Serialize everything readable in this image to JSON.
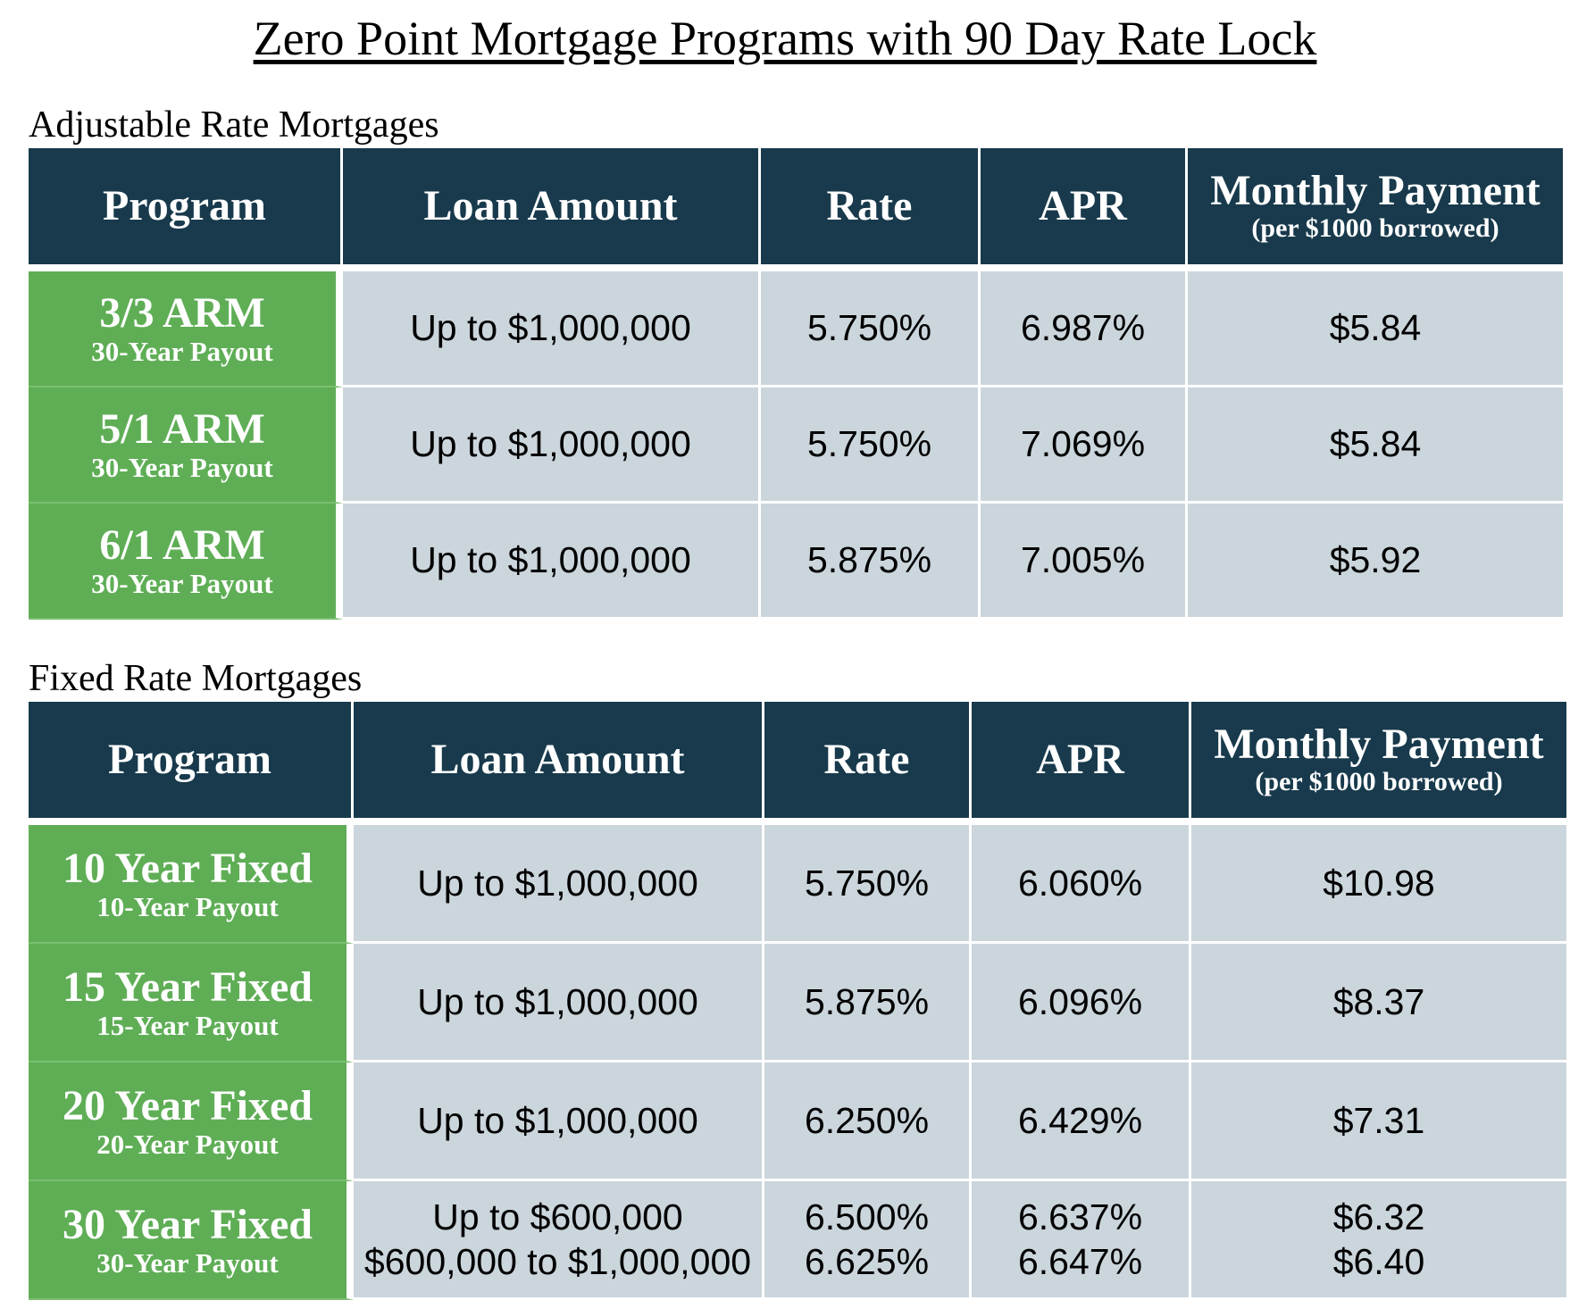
{
  "title": "Zero Point Mortgage Programs with 90 Day Rate Lock",
  "headers": {
    "program": "Program",
    "loan_amount": "Loan Amount",
    "rate": "Rate",
    "apr": "APR",
    "monthly_payment": "Monthly Payment",
    "monthly_payment_sub": "(per $1000 borrowed)"
  },
  "arm": {
    "title": "Adjustable Rate Mortgages",
    "rows": [
      {
        "program": "3/3 ARM",
        "payout": "30-Year Payout",
        "loan": "Up to $1,000,000",
        "rate": "5.750%",
        "apr": "6.987%",
        "payment": "$5.84"
      },
      {
        "program": "5/1 ARM",
        "payout": "30-Year Payout",
        "loan": "Up to $1,000,000",
        "rate": "5.750%",
        "apr": "7.069%",
        "payment": "$5.84"
      },
      {
        "program": "6/1 ARM",
        "payout": "30-Year Payout",
        "loan": "Up to $1,000,000",
        "rate": "5.875%",
        "apr": "7.005%",
        "payment": "$5.92"
      }
    ]
  },
  "fixed": {
    "title": "Fixed Rate Mortgages",
    "rows": [
      {
        "program": "10 Year Fixed",
        "payout": "10-Year Payout",
        "loan": "Up to $1,000,000",
        "rate": "5.750%",
        "apr": "6.060%",
        "payment": "$10.98"
      },
      {
        "program": "15 Year Fixed",
        "payout": "15-Year Payout",
        "loan": "Up to $1,000,000",
        "rate": "5.875%",
        "apr": "6.096%",
        "payment": "$8.37"
      },
      {
        "program": "20 Year Fixed",
        "payout": "20-Year Payout",
        "loan": "Up to $1,000,000",
        "rate": "6.250%",
        "apr": "6.429%",
        "payment": "$7.31"
      },
      {
        "program": "30 Year Fixed",
        "payout": "30-Year Payout",
        "loan": "Up to $600,000",
        "rate": "6.500%",
        "apr": "6.637%",
        "payment": "$6.32",
        "loan2": "$600,000 to $1,000,000",
        "rate2": "6.625%",
        "apr2": "6.647%",
        "payment2": "$6.40"
      }
    ]
  },
  "colors": {
    "header_bg": "#183a4c",
    "program_bg": "#5fae56",
    "cell_bg": "#cbd5dc"
  }
}
